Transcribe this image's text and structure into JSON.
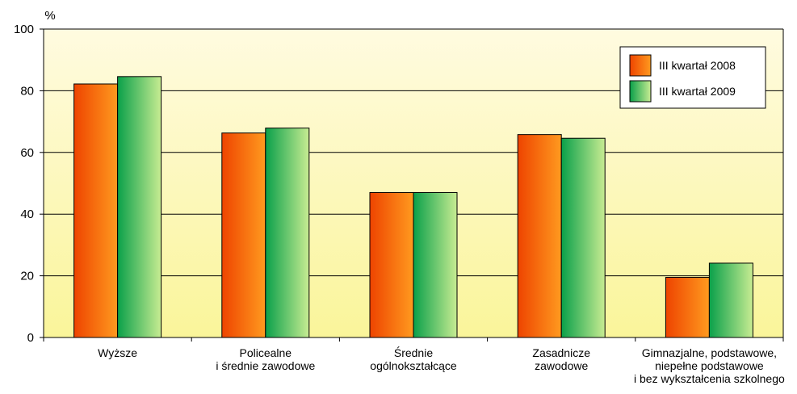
{
  "chart_data": {
    "type": "bar",
    "unit_label": "%",
    "categories": [
      [
        "Wyższe"
      ],
      [
        "Policealne",
        "i średnie zawodowe"
      ],
      [
        "Średnie",
        "ogólnokształcące"
      ],
      [
        "Zasadnicze",
        "zawodowe"
      ],
      [
        "Gimnazjalne, podstawowe,",
        "niepełne podstawowe",
        "i bez wykształcenia szkolnego"
      ]
    ],
    "series": [
      {
        "name": "III kwartał 2008",
        "values": [
          82.2,
          66.3,
          47.0,
          65.8,
          19.5
        ]
      },
      {
        "name": "III kwartał 2009",
        "values": [
          84.6,
          67.9,
          47.0,
          64.6,
          24.1
        ]
      }
    ],
    "ylim": [
      0,
      100
    ],
    "yticks": [
      0,
      20,
      40,
      60,
      80,
      100
    ],
    "grid": true,
    "legend_position": "top-right",
    "colors": {
      "plot_bg_top": "#fffbe0",
      "plot_bg_bottom": "#faf59a",
      "series_2008": [
        "#ee4400",
        "#ff9a1f"
      ],
      "series_2009": [
        "#0aa04a",
        "#c8ec92"
      ],
      "axis": "#000000",
      "grid": "#000000"
    }
  }
}
